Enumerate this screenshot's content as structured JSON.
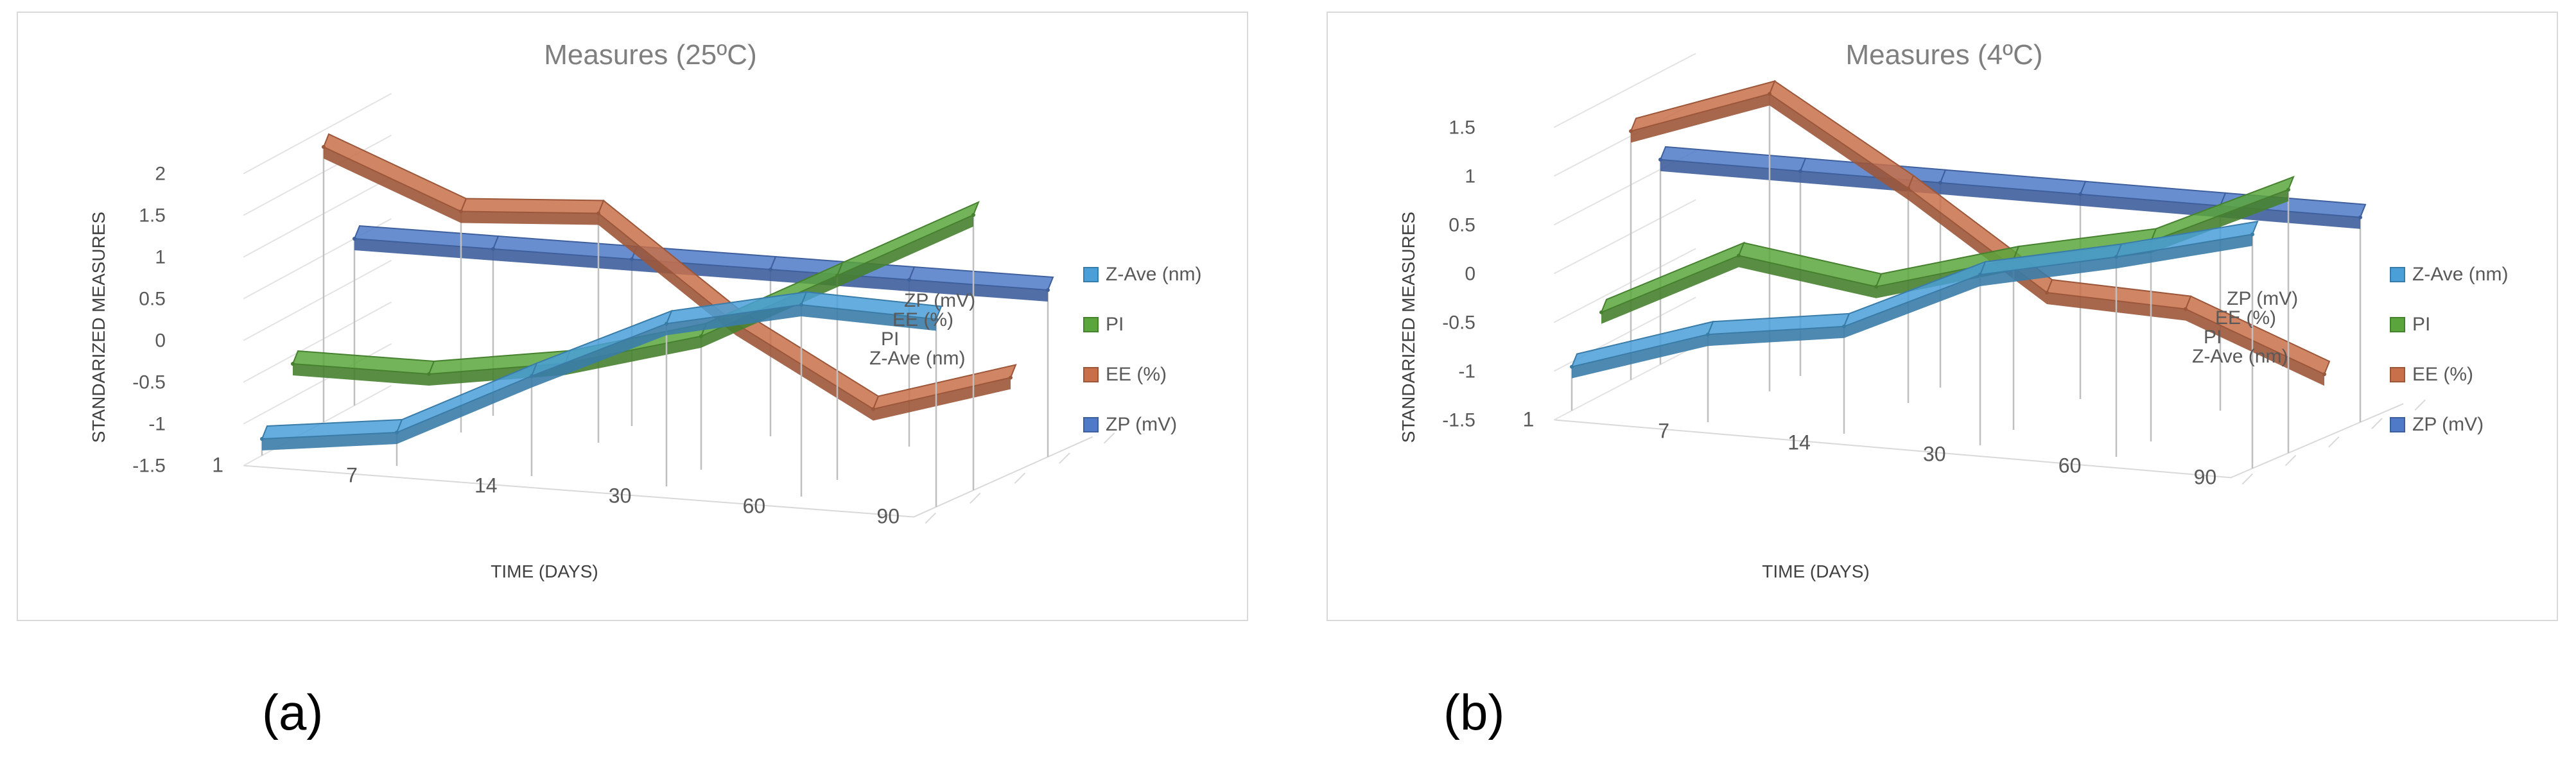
{
  "chart_data": [
    {
      "type": "line",
      "subtype": "3d-ribbon",
      "title": "Measures  (25ºC)",
      "xlabel": "TIME (DAYS)",
      "ylabel": "STANDARIZED MEASURES",
      "categories": [
        "1",
        "7",
        "14",
        "30",
        "60",
        "90"
      ],
      "yticks": [
        "2",
        "1.5",
        "1",
        "0.5",
        "0",
        "-0.5",
        "-1",
        "-1.5"
      ],
      "ylim": [
        -1.5,
        2
      ],
      "depth_labels": [
        "ZP (mV)",
        "EE (%)",
        "PI",
        "Z-Ave (nm)"
      ],
      "legend_position": "right",
      "series": [
        {
          "name": "Z-Ave (nm)",
          "color": "#4a9fd8",
          "values": [
            -1.3,
            -1.1,
            -0.3,
            0.45,
            0.8,
            0.75
          ]
        },
        {
          "name": "PI",
          "color": "#5aa63c",
          "values": [
            -0.6,
            -0.6,
            -0.35,
            0.1,
            0.95,
            1.8
          ]
        },
        {
          "name": "EE (%)",
          "color": "#c8704a",
          "values": [
            1.8,
            1.15,
            1.25,
            0.05,
            -0.85,
            -0.35
          ]
        },
        {
          "name": "ZP (mV)",
          "color": "#4f7ac8",
          "values": [
            0.5,
            0.5,
            0.5,
            0.5,
            0.5,
            0.5
          ]
        }
      ]
    },
    {
      "type": "line",
      "subtype": "3d-ribbon",
      "title": "Measures  (4ºC)",
      "xlabel": "TIME (DAYS)",
      "ylabel": "STANDARIZED MEASURES",
      "categories": [
        "1",
        "7",
        "14",
        "30",
        "60",
        "90"
      ],
      "yticks": [
        "1.5",
        "1",
        "0.5",
        "0",
        "-0.5",
        "-1",
        "-1.5"
      ],
      "ylim": [
        -1.5,
        1.5
      ],
      "depth_labels": [
        "ZP (mV)",
        "EE (%)",
        "PI",
        "Z-Ave (nm)"
      ],
      "legend_position": "right",
      "series": [
        {
          "name": "Z-Ave (nm)",
          "color": "#4a9fd8",
          "values": [
            -1.05,
            -0.6,
            -0.4,
            0.25,
            0.55,
            0.9
          ]
        },
        {
          "name": "PI",
          "color": "#5aa63c",
          "values": [
            -0.65,
            0.05,
            -0.15,
            0.25,
            0.55,
            1.2
          ]
        },
        {
          "name": "EE (%)",
          "color": "#c8704a",
          "values": [
            1.05,
            1.55,
            0.7,
            -0.25,
            -0.3,
            -0.85
          ]
        },
        {
          "name": "ZP (mV)",
          "color": "#4f7ac8",
          "values": [
            0.6,
            0.6,
            0.6,
            0.6,
            0.6,
            0.6
          ]
        }
      ]
    }
  ],
  "panel_labels": [
    "(a)",
    "(b)"
  ]
}
